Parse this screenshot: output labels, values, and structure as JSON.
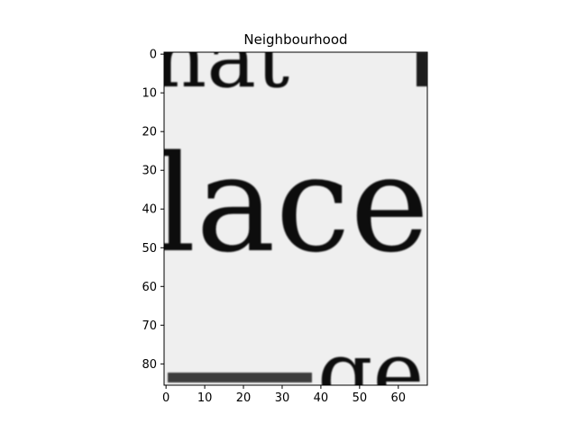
{
  "chart_data": {
    "type": "heatmap",
    "title": "Neighbourhood",
    "colormap": "grayscale",
    "x_ticks": [
      0,
      10,
      20,
      30,
      40,
      50,
      60
    ],
    "y_ticks": [
      0,
      10,
      20,
      30,
      40,
      50,
      60,
      70,
      80
    ],
    "xlim": [
      -0.5,
      67.5
    ],
    "ylim": [
      85.5,
      -0.5
    ],
    "image_content": {
      "description_words": [
        "hat",
        "lace",
        "ge"
      ],
      "background_color": "#f0f0f0",
      "ink_color": "#111111"
    }
  }
}
